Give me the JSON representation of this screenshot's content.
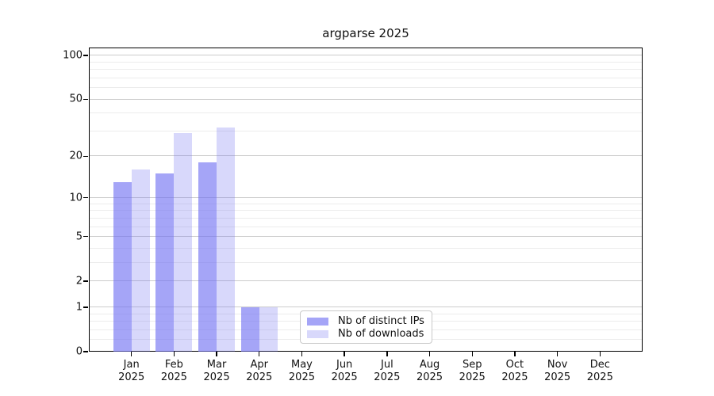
{
  "title": "argparse 2025",
  "colors": {
    "bar_base": "#6e6ef2",
    "distinct_ips_fill": "rgba(110,110,242,0.62)",
    "downloads_fill": "rgba(110,110,242,0.27)",
    "grid_major": "#cccccc",
    "grid_minor": "#ececec",
    "spine": "#000000",
    "legend_border": "#c9c9c9"
  },
  "chart_data": {
    "type": "bar",
    "title": "argparse 2025",
    "categories": [
      "Jan",
      "Feb",
      "Mar",
      "Apr",
      "May",
      "Jun",
      "Jul",
      "Aug",
      "Sep",
      "Oct",
      "Nov",
      "Dec"
    ],
    "category_year": "2025",
    "series": [
      {
        "name": "Nb of distinct IPs",
        "values": [
          13,
          15,
          18,
          1,
          0,
          0,
          0,
          0,
          0,
          0,
          0,
          0
        ],
        "color": "rgba(110,110,242,0.62)"
      },
      {
        "name": "Nb of downloads",
        "values": [
          16,
          29,
          32,
          1,
          0,
          0,
          0,
          0,
          0,
          0,
          0,
          0
        ],
        "color": "rgba(110,110,242,0.27)"
      }
    ],
    "yscale": "log1p",
    "ylim": [
      0,
      113.3
    ],
    "yticks_major": [
      0,
      1,
      2,
      5,
      10,
      20,
      50,
      100
    ],
    "yticks_minor": [
      0.2,
      0.4,
      0.6,
      0.8,
      3,
      4,
      6,
      7,
      8,
      9,
      30,
      40,
      60,
      70,
      80,
      90
    ],
    "grid": "on",
    "legend_position": "lower center"
  }
}
